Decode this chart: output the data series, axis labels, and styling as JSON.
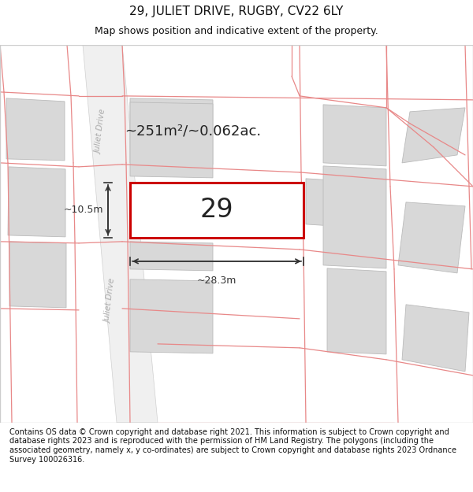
{
  "title": "29, JULIET DRIVE, RUGBY, CV22 6LY",
  "subtitle": "Map shows position and indicative extent of the property.",
  "footer": "Contains OS data © Crown copyright and database right 2021. This information is subject to Crown copyright and database rights 2023 and is reproduced with the permission of HM Land Registry. The polygons (including the associated geometry, namely x, y co-ordinates) are subject to Crown copyright and database rights 2023 Ordnance Survey 100026316.",
  "label_29": "29",
  "area_label": "~251m²/~0.062ac.",
  "width_label": "~28.3m",
  "height_label": "~10.5m",
  "title_fontsize": 11,
  "subtitle_fontsize": 9,
  "footer_fontsize": 7,
  "map_bg": "#ffffff",
  "block_fill": "#d8d8d8",
  "block_edge": "#bbbbbb",
  "pink": "#e88888",
  "property_fill": "#ffffff",
  "property_edge": "#cc0000",
  "road_label_color": "#aaaaaa",
  "dim_color": "#333333"
}
